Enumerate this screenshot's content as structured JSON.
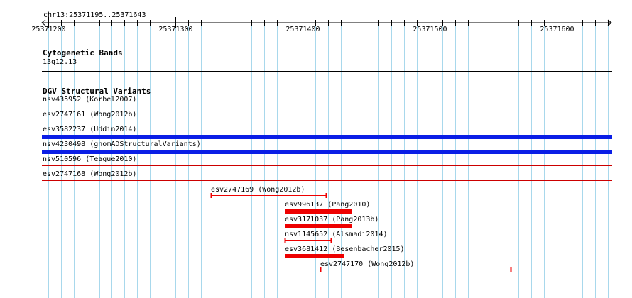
{
  "view": {
    "location_label": "chr13:25371195..25371643",
    "start": 25371195,
    "end": 25371643,
    "major_ticks": [
      {
        "pos": 25371200,
        "label": "25371200"
      },
      {
        "pos": 25371300,
        "label": "25371300"
      },
      {
        "pos": 25371400,
        "label": "25371400"
      },
      {
        "pos": 25371500,
        "label": "25371500"
      },
      {
        "pos": 25371600,
        "label": "25371600"
      }
    ],
    "minor_tick_step": 10
  },
  "colors": {
    "gridline": "#a8d8ec",
    "full_span_line": "#cc0000",
    "wide_bar": "#0a1ee6",
    "feature_red": "#ee0000",
    "text": "#000000"
  },
  "tracks": {
    "cytoband": {
      "title": "Cytogenetic Bands",
      "band_label": "13q12.13"
    },
    "dgv": {
      "title": "DGV Structural Variants",
      "full_span": [
        {
          "label": "nsv435952 (Korbel2007)",
          "style": "line"
        },
        {
          "label": "esv2747161 (Wong2012b)",
          "style": "line"
        },
        {
          "label": "esv3582237 (Uddin2014)",
          "style": "bar"
        },
        {
          "label": "nsv4230498 (gnomADStructuralVariants)",
          "style": "bar"
        },
        {
          "label": "nsv510596 (Teague2010)",
          "style": "line"
        },
        {
          "label": "esv2747168 (Wong2012b)",
          "style": "line"
        }
      ],
      "features": [
        {
          "label": "esv2747169 (Wong2012b)",
          "start": 25371328,
          "end": 25371419,
          "style": "line"
        },
        {
          "label": "esv996137 (Pang2010)",
          "start": 25371386,
          "end": 25371439,
          "style": "bar"
        },
        {
          "label": "esv3171037 (Pang2013b)",
          "start": 25371386,
          "end": 25371439,
          "style": "bar"
        },
        {
          "label": "nsv1145652 (Alsmadi2014)",
          "start": 25371386,
          "end": 25371423,
          "style": "line"
        },
        {
          "label": "esv3681412 (Besenbacher2015)",
          "start": 25371386,
          "end": 25371433,
          "style": "bar"
        },
        {
          "label": "esv2747170 (Wong2012b)",
          "start": 25371414,
          "end": 25371564,
          "style": "line"
        }
      ]
    }
  }
}
